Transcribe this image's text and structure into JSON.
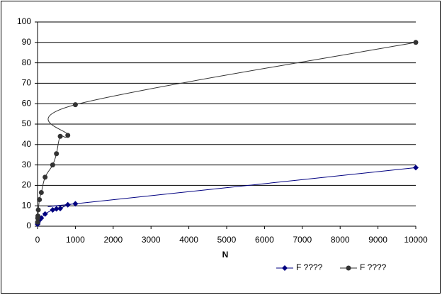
{
  "chart_data": {
    "type": "scatter",
    "x_label": "N",
    "x": [
      1,
      5,
      10,
      20,
      50,
      100,
      200,
      400,
      500,
      600,
      800,
      1000,
      10000
    ],
    "series": [
      {
        "name": "F ????",
        "color": "#000080",
        "marker": "diamond",
        "values": [
          1,
          1.5,
          2,
          2.5,
          3,
          4,
          6,
          8,
          8.5,
          8.7,
          10.5,
          11,
          28.7
        ]
      },
      {
        "name": "F ????",
        "color": "#333333",
        "marker": "circle",
        "values": [
          2,
          4,
          5,
          8,
          13,
          16.5,
          24,
          30,
          35.5,
          44,
          44.5,
          59.5,
          90
        ]
      }
    ],
    "xlim": [
      0,
      10000
    ],
    "xticks": [
      0,
      1000,
      2000,
      3000,
      4000,
      5000,
      6000,
      7000,
      8000,
      9000,
      10000
    ],
    "ylim": [
      0,
      100
    ],
    "yticks": [
      0,
      10,
      20,
      30,
      40,
      50,
      60,
      70,
      80,
      90,
      100
    ],
    "grid": true,
    "smooth": true,
    "legend": "bottom-right"
  }
}
